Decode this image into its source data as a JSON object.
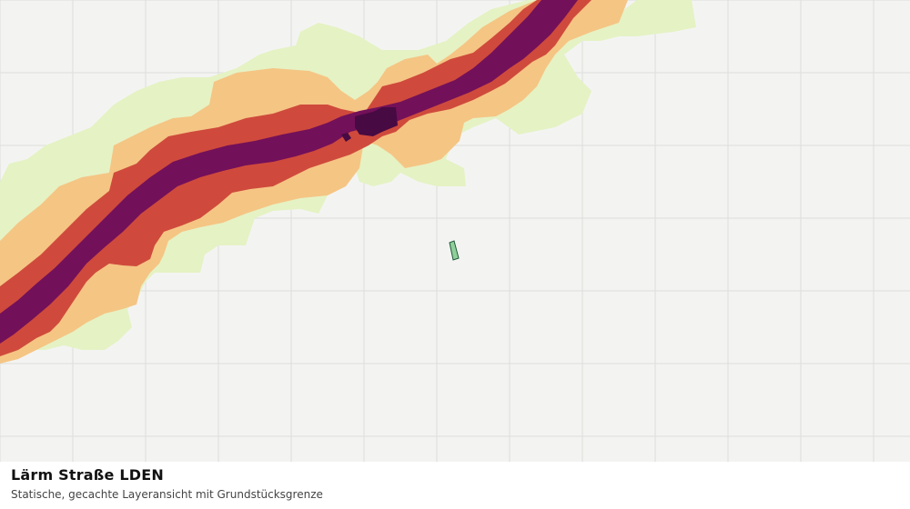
{
  "caption": {
    "title": "Lärm Straße LDEN",
    "subtitle": "Statische, gecachte Layeransicht mit Grundstücksgrenze"
  },
  "map": {
    "background_color": "#f3f4f2",
    "grid_color": "#dcdedb",
    "noise_bands": [
      {
        "name": "band-lowest",
        "color": "#e5f2c4"
      },
      {
        "name": "band-low",
        "color": "#f5c584"
      },
      {
        "name": "band-medium",
        "color": "#cf4a3c"
      },
      {
        "name": "band-high",
        "color": "#73105a"
      },
      {
        "name": "band-highest",
        "color": "#470a42"
      }
    ],
    "parcel": {
      "fill": "#8fcf9a",
      "stroke": "#1f5a3a"
    }
  }
}
